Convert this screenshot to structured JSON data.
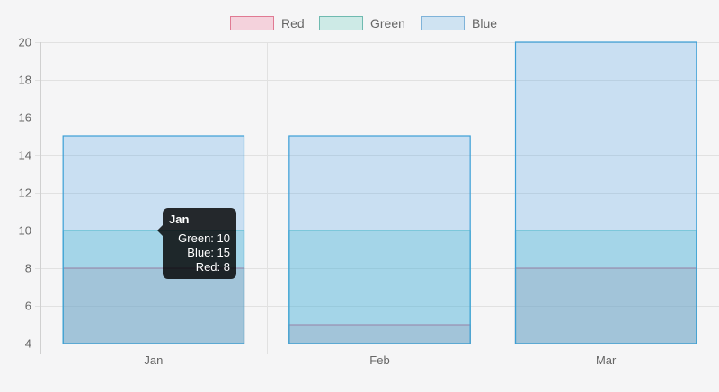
{
  "legend": [
    {
      "label": "Red",
      "fill": "#f4d2dc",
      "stroke": "#e07a93"
    },
    {
      "label": "Green",
      "fill": "#cdeae6",
      "stroke": "#6fbab0"
    },
    {
      "label": "Blue",
      "fill": "#cfe3f2",
      "stroke": "#7fb3d9"
    }
  ],
  "chart_data": {
    "type": "bar",
    "stacked": false,
    "categories": [
      "Jan",
      "Feb",
      "Mar"
    ],
    "series": [
      {
        "name": "Red",
        "values": [
          8,
          5,
          8
        ],
        "fill": "rgba(232,90,120,0.20)",
        "stroke": "#e06c8a"
      },
      {
        "name": "Green",
        "values": [
          10,
          10,
          10
        ],
        "fill": "rgba(80,200,200,0.30)",
        "stroke": "#4bbfbf"
      },
      {
        "name": "Blue",
        "values": [
          15,
          15,
          20
        ],
        "fill": "rgba(70,160,230,0.25)",
        "stroke": "#3b9fd6"
      }
    ],
    "yticks": [
      4,
      6,
      8,
      10,
      12,
      14,
      16,
      18,
      20
    ],
    "ylim": [
      4,
      20
    ],
    "grid": true,
    "legend_position": "top"
  },
  "tooltip": {
    "title": "Jan",
    "lines": [
      "Green: 10",
      "Blue: 15",
      "Red: 8"
    ]
  }
}
